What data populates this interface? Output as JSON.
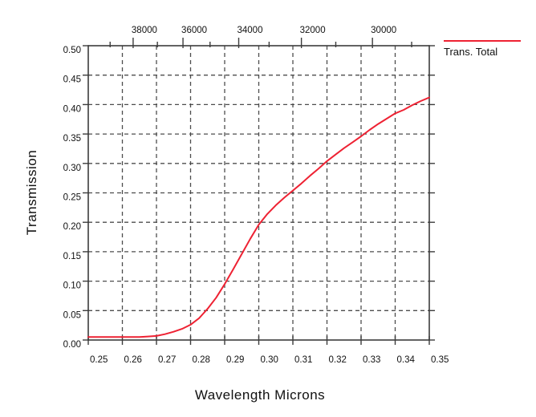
{
  "styles": {
    "background": "#ffffff",
    "line_color": "#ee2233",
    "grid_color": "#4d4d4d",
    "axis_color": "#3c3c3c",
    "text_color": "#111111"
  },
  "chart_data": {
    "type": "line",
    "title": "",
    "xlabel": "Wavelength Microns",
    "ylabel": "Transmission",
    "xlim": [
      0.25,
      0.35
    ],
    "ylim": [
      0.0,
      0.5
    ],
    "x_ticks": [
      0.25,
      0.26,
      0.27,
      0.28,
      0.29,
      0.3,
      0.31,
      0.32,
      0.33,
      0.34,
      0.35
    ],
    "y_ticks": [
      0.0,
      0.05,
      0.1,
      0.15,
      0.2,
      0.25,
      0.3,
      0.35,
      0.4,
      0.45,
      0.5
    ],
    "top_axis": {
      "relation": "wavenumber = 10000 / wavelength_microns",
      "major_ticks": [
        38000,
        36000,
        34000,
        32000,
        30000
      ],
      "minor_ticks": [
        39000,
        37000,
        35000,
        33000,
        31000,
        29000
      ]
    },
    "grid": true,
    "grid_style": "dashed",
    "legend_position": "top-right-outside",
    "series": [
      {
        "name": "Trans. Total",
        "color": "#ee2233",
        "x": [
          0.25,
          0.2525,
          0.255,
          0.2575,
          0.26,
          0.2625,
          0.265,
          0.2675,
          0.27,
          0.2725,
          0.275,
          0.2775,
          0.28,
          0.2825,
          0.285,
          0.2875,
          0.29,
          0.2925,
          0.295,
          0.2975,
          0.3,
          0.3025,
          0.305,
          0.3075,
          0.31,
          0.3125,
          0.315,
          0.3175,
          0.32,
          0.3225,
          0.325,
          0.3275,
          0.33,
          0.3325,
          0.335,
          0.3375,
          0.34,
          0.3425,
          0.345,
          0.3475,
          0.35
        ],
        "y": [
          0.005,
          0.005,
          0.005,
          0.005,
          0.005,
          0.005,
          0.005,
          0.006,
          0.007,
          0.01,
          0.014,
          0.019,
          0.026,
          0.037,
          0.053,
          0.072,
          0.095,
          0.12,
          0.146,
          0.172,
          0.196,
          0.214,
          0.229,
          0.242,
          0.254,
          0.266,
          0.279,
          0.291,
          0.304,
          0.315,
          0.326,
          0.336,
          0.346,
          0.357,
          0.367,
          0.376,
          0.385,
          0.391,
          0.399,
          0.406,
          0.412
        ]
      }
    ]
  }
}
